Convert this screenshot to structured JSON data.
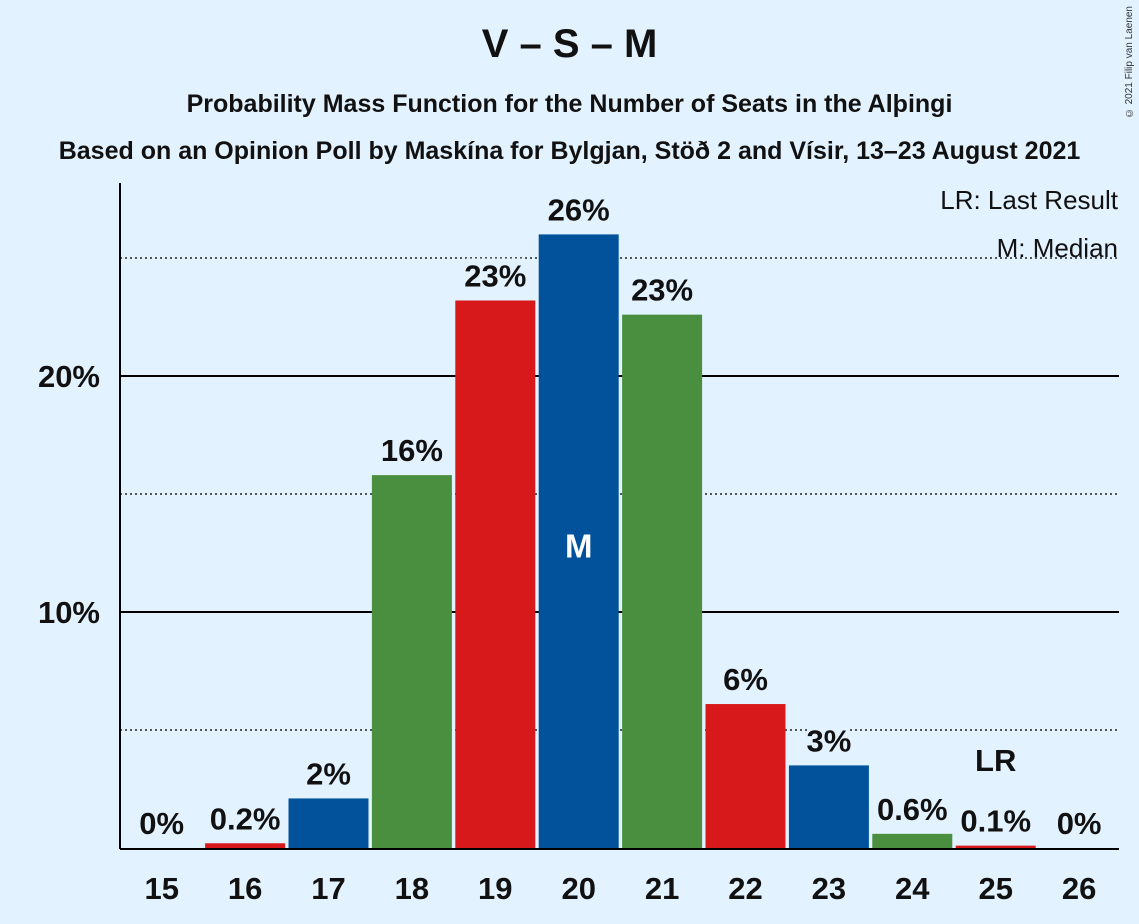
{
  "title": "V – S – M",
  "subtitle": "Probability Mass Function for the Number of Seats in the Alþingi",
  "subtitle2": "Based on an Opinion Poll by Maskína for Bylgjan, Stöð 2 and Vísir, 13–23 August 2021",
  "copyright": "© 2021 Filip van Laenen",
  "legend": {
    "last_result": "LR: Last Result",
    "median": "M: Median"
  },
  "colors": {
    "background": "#e3f2ff",
    "red": "#d7191c",
    "blue": "#01529b",
    "green": "#4a8f3f"
  },
  "chart_data": {
    "type": "bar",
    "categories": [
      "15",
      "16",
      "17",
      "18",
      "19",
      "20",
      "21",
      "22",
      "23",
      "24",
      "25",
      "26"
    ],
    "values": [
      0,
      0.2,
      2.1,
      15.8,
      23.2,
      26.0,
      22.6,
      6.1,
      3.5,
      0.6,
      0.1,
      0
    ],
    "labels": [
      "0%",
      "0.2%",
      "2%",
      "16%",
      "23%",
      "26%",
      "23%",
      "6%",
      "3%",
      "0.6%",
      "0.1%",
      "0%"
    ],
    "bar_colors": [
      "blue",
      "red",
      "blue",
      "green",
      "red",
      "blue",
      "green",
      "red",
      "blue",
      "green",
      "red",
      "blue"
    ],
    "ylim": [
      0,
      28
    ],
    "yticks": [
      {
        "value": 10,
        "label": "10%"
      },
      {
        "value": 20,
        "label": "20%"
      }
    ],
    "minor_gridlines": [
      5,
      15,
      25
    ],
    "median": {
      "category": "20",
      "label": "M"
    },
    "last_result": {
      "category": "25",
      "label": "LR"
    },
    "legend_placement": "top-right"
  }
}
